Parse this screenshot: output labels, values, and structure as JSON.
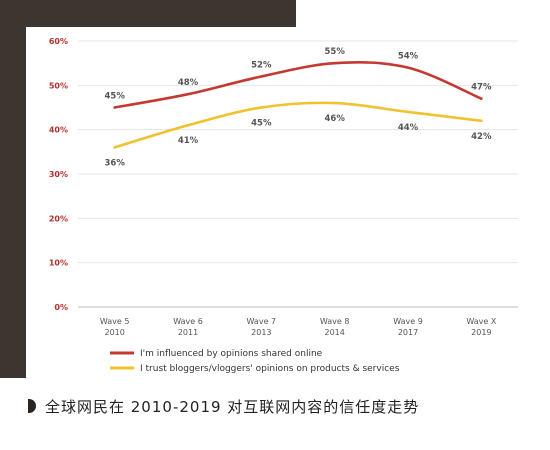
{
  "chart_data": {
    "type": "line",
    "categories": [
      "Wave 5\n2010",
      "Wave 6\n2011",
      "Wave 7\n2013",
      "Wave 8\n2014",
      "Wave 9\n2017",
      "Wave X\n2019"
    ],
    "y_ticks": [
      "0%",
      "10%",
      "20%",
      "30%",
      "40%",
      "50%",
      "60%"
    ],
    "ylim": [
      0,
      60
    ],
    "grid": true,
    "legend_position": "bottom-left",
    "series": [
      {
        "name": "I'm influenced by opinions shared online",
        "values": [
          45,
          48,
          52,
          55,
          54,
          47
        ],
        "labels": [
          "45%",
          "48%",
          "52%",
          "55%",
          "54%",
          "47%"
        ],
        "color": "#c43a31"
      },
      {
        "name": "I trust bloggers/vloggers' opinions on products & services",
        "values": [
          36,
          41,
          45,
          46,
          44,
          42
        ],
        "labels": [
          "36%",
          "41%",
          "45%",
          "46%",
          "44%",
          "42%"
        ],
        "color": "#f2c12e"
      }
    ]
  },
  "caption": {
    "text": "全球网民在 2010-2019 对互联网内容的信任度走势",
    "marker_color": "#2a2522"
  },
  "frame_color": "#3d3530"
}
